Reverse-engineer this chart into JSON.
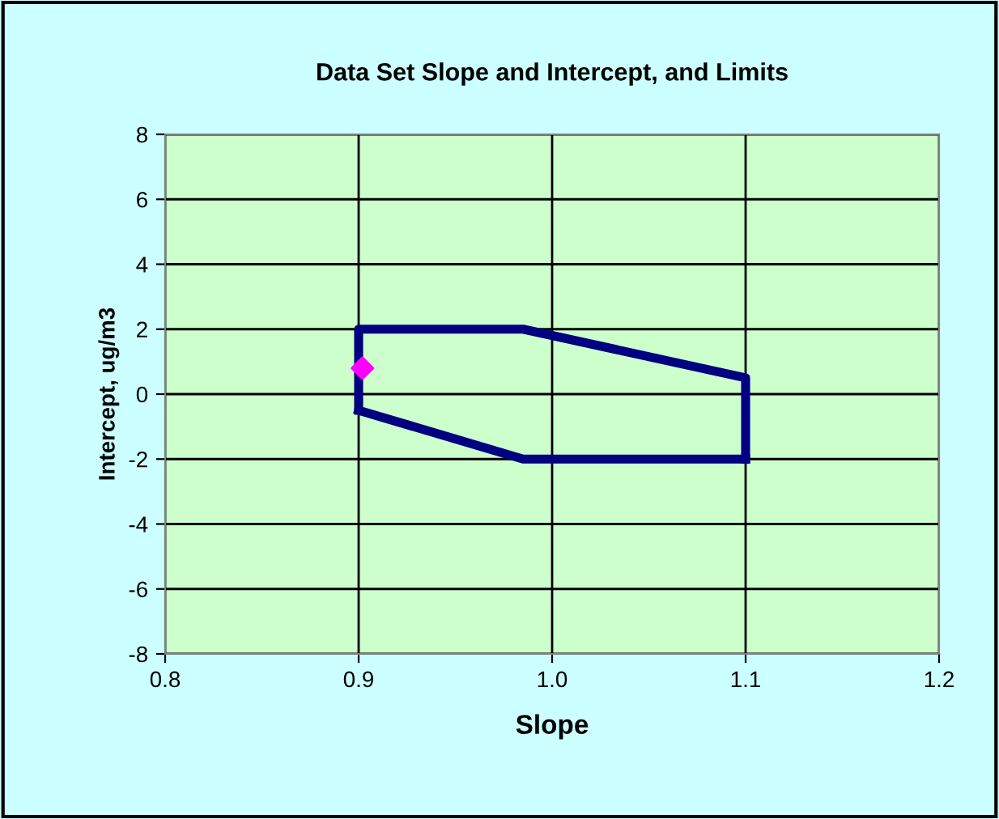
{
  "chart_data": {
    "type": "line",
    "title": "Data Set Slope and Intercept, and Limits",
    "xlabel": "Slope",
    "ylabel": "Intercept, ug/m3",
    "series": [
      {
        "color": "#000080",
        "x": [
          0.9,
          0.9,
          0.985,
          1.1,
          1.1
        ],
        "values": [
          -0.5,
          2,
          2,
          0.5,
          -2
        ]
      },
      {
        "color": "#000080",
        "x": [
          0.9,
          0.985,
          1.1
        ],
        "values": [
          -0.5,
          -2,
          -2
        ]
      },
      {
        "type": "scatter",
        "color": "#ff00ff",
        "x": [
          0.902
        ],
        "values": [
          0.8
        ],
        "marker": "diamond"
      }
    ],
    "xlim": [
      0.8,
      1.2
    ],
    "xticks": [
      0.8,
      0.9,
      {
        "value": 1.0,
        "label": "1.0"
      },
      1.1,
      1.2
    ],
    "ylim": [
      -8,
      8
    ],
    "yticks": [
      -8,
      -6,
      -4,
      -2,
      0,
      2,
      4,
      6,
      8
    ],
    "grid": true,
    "legend": false
  }
}
